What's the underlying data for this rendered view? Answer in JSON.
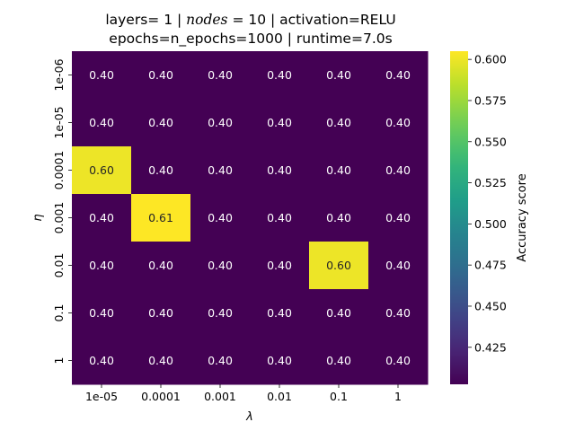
{
  "chart_data": {
    "type": "heatmap",
    "title": {
      "line1_prefix": "layers= 1 | ",
      "line1_math": "nodes",
      "line1_suffix": " = 10 | activation=RELU",
      "line2": "epochs=n_epochs=1000 | runtime=7.0s"
    },
    "xlabel": "λ",
    "ylabel": "η",
    "x_categories": [
      "1e-05",
      "0.0001",
      "0.001",
      "0.01",
      "0.1",
      "1"
    ],
    "y_categories": [
      "1e-06",
      "1e-05",
      "0.0001",
      "0.001",
      "0.01",
      "0.1",
      "1"
    ],
    "values": [
      [
        0.4,
        0.4,
        0.4,
        0.4,
        0.4,
        0.4
      ],
      [
        0.4,
        0.4,
        0.4,
        0.4,
        0.4,
        0.4
      ],
      [
        0.6,
        0.4,
        0.4,
        0.4,
        0.4,
        0.4
      ],
      [
        0.4,
        0.61,
        0.4,
        0.4,
        0.4,
        0.4
      ],
      [
        0.4,
        0.4,
        0.4,
        0.4,
        0.6,
        0.4
      ],
      [
        0.4,
        0.4,
        0.4,
        0.4,
        0.4,
        0.4
      ],
      [
        0.4,
        0.4,
        0.4,
        0.4,
        0.4,
        0.4
      ]
    ],
    "colormap": "viridis",
    "colorbar": {
      "label": "Accuracy score",
      "range": [
        0.4025,
        0.605
      ],
      "ticks": [
        0.425,
        0.45,
        0.475,
        0.5,
        0.525,
        0.55,
        0.575,
        0.6
      ],
      "tick_labels": [
        "0.425",
        "0.450",
        "0.475",
        "0.500",
        "0.525",
        "0.550",
        "0.575",
        "0.600"
      ]
    },
    "annotation_format": "0.00",
    "grid": false
  }
}
